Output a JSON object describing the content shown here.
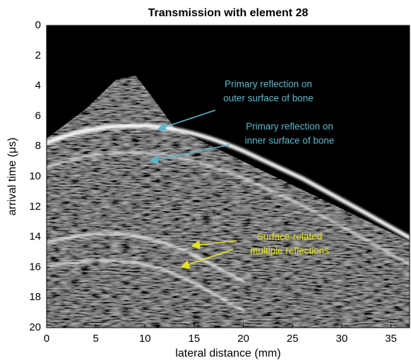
{
  "chart_data": {
    "type": "image",
    "title": "Transmission with element 28",
    "x_label": "lateral distance (mm)",
    "y_label": "arrival time (μs)",
    "colormap": "gray",
    "xlim": [
      0,
      36.9
    ],
    "xticks": [
      0,
      5,
      10,
      15,
      20,
      25,
      30,
      35
    ],
    "ylim": [
      20,
      0
    ],
    "yticks": [
      0,
      2,
      4,
      6,
      8,
      10,
      12,
      14,
      16,
      18,
      20
    ],
    "annotations": [
      {
        "lines": [
          "Primary reflection on",
          "outer surface of bone"
        ],
        "color": "#5bb8cc"
      },
      {
        "lines": [
          "Primary reflection on",
          "inner surface of bone"
        ],
        "color": "#5bb8cc"
      },
      {
        "lines": [
          "Surface-related",
          "multiple reflections"
        ],
        "color": "#e6e21a"
      }
    ]
  }
}
